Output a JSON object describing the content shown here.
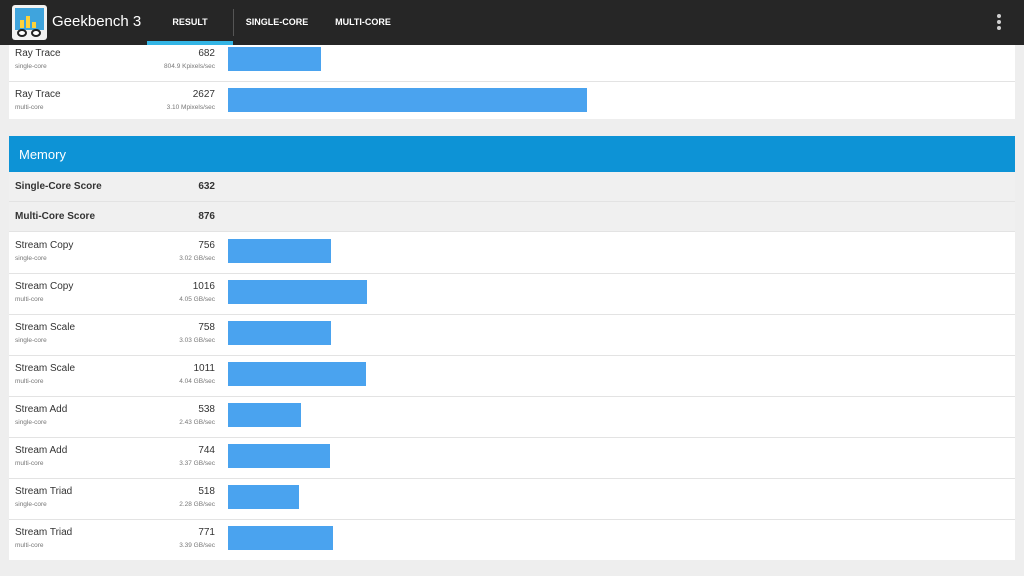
{
  "app": {
    "title": "Geekbench 3"
  },
  "tabs": [
    {
      "label": "RESULT",
      "active": true
    },
    {
      "label": "SINGLE-CORE",
      "active": false
    },
    {
      "label": "MULTI-CORE",
      "active": false
    }
  ],
  "colors": {
    "accent": "#33b5e5",
    "section_header": "#0d93d6",
    "bar": "#4aa3ef",
    "appbar": "#262626"
  },
  "icons": {
    "app": "geekbench-app-icon",
    "overflow": "overflow-menu-icon"
  },
  "top_card": {
    "rows": [
      {
        "name": "Ray Trace",
        "sub": "single-core",
        "score": "682",
        "rate": "804.9 Kpixels/sec",
        "score_value": 682
      },
      {
        "name": "Ray Trace",
        "sub": "multi-core",
        "score": "2627",
        "rate": "3.10 Mpixels/sec",
        "score_value": 2627
      }
    ]
  },
  "memory": {
    "title": "Memory",
    "single_core_label": "Single-Core Score",
    "single_core_value": "632",
    "multi_core_label": "Multi-Core Score",
    "multi_core_value": "876",
    "rows": [
      {
        "name": "Stream Copy",
        "sub": "single-core",
        "score": "756",
        "rate": "3.02 GB/sec",
        "score_value": 756
      },
      {
        "name": "Stream Copy",
        "sub": "multi-core",
        "score": "1016",
        "rate": "4.05 GB/sec",
        "score_value": 1016
      },
      {
        "name": "Stream Scale",
        "sub": "single-core",
        "score": "758",
        "rate": "3.03 GB/sec",
        "score_value": 758
      },
      {
        "name": "Stream Scale",
        "sub": "multi-core",
        "score": "1011",
        "rate": "4.04 GB/sec",
        "score_value": 1011
      },
      {
        "name": "Stream Add",
        "sub": "single-core",
        "score": "538",
        "rate": "2.43 GB/sec",
        "score_value": 538
      },
      {
        "name": "Stream Add",
        "sub": "multi-core",
        "score": "744",
        "rate": "3.37 GB/sec",
        "score_value": 744
      },
      {
        "name": "Stream Triad",
        "sub": "single-core",
        "score": "518",
        "rate": "2.28 GB/sec",
        "score_value": 518
      },
      {
        "name": "Stream Triad",
        "sub": "multi-core",
        "score": "771",
        "rate": "3.39 GB/sec",
        "score_value": 771
      }
    ]
  }
}
